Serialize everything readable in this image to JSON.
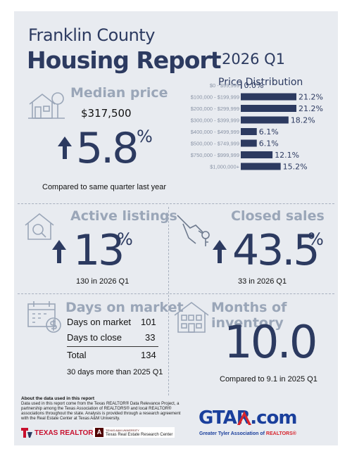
{
  "header": {
    "title_line1": "Franklin County",
    "title_line2": "Housing Report",
    "period": "2026 Q1"
  },
  "median_price": {
    "title": "Median price",
    "value": "$317,500",
    "change": "5.8",
    "unit": "%",
    "note": "Compared to same quarter last year",
    "icon": "house-tree-icon"
  },
  "price_distribution": {
    "title": "Price Distribution",
    "chart_data": {
      "type": "bar",
      "orientation": "horizontal",
      "categories": [
        "$0 - $99,999",
        "$100,000 - $199,999",
        "$200,000 - $299,999",
        "$300,000 - $399,999",
        "$400,000 - $499,999",
        "$500,000 - $749,999",
        "$750,000 - $999,999",
        "$1,000,000+"
      ],
      "values": [
        0.0,
        21.2,
        21.2,
        18.2,
        6.1,
        6.1,
        12.1,
        15.2
      ],
      "value_labels": [
        "0.0%",
        "21.2%",
        "21.2%",
        "18.2%",
        "6.1%",
        "6.1%",
        "12.1%",
        "15.2%"
      ],
      "color": "#2c3a60"
    }
  },
  "active_listings": {
    "title": "Active listings",
    "change": "13",
    "unit": "%",
    "note": "130 in 2026 Q1",
    "icon": "house-search-icon"
  },
  "closed_sales": {
    "title": "Closed sales",
    "change": "43.5",
    "unit": "%",
    "note": "33 in 2026 Q1",
    "icon": "key-hand-icon"
  },
  "days_on_market": {
    "title": "Days on market",
    "rows": [
      {
        "label": "Days on market",
        "value": "101"
      },
      {
        "label": "Days to close",
        "value": "33"
      }
    ],
    "total_label": "Total",
    "total_value": "134",
    "note": "30 days more than 2025 Q1",
    "icon": "calendar-dollar-icon"
  },
  "months_inventory": {
    "title": "Months of inventory",
    "value": "10.0",
    "note": "Compared to 9.1 in 2025 Q1",
    "icon": "house-icon"
  },
  "footer": {
    "about_title": "About the data used in this report",
    "about_text": "Data used in this report come from the Texas REALTOR® Data Relevance Project, a partnership among the Texas Association of REALTORS® and local REALTOR® associations throughout the state. Analysis is provided through a research agreement with the Real Estate Center at Texas A&M University.",
    "logo_tr": "TEXAS REALTORS",
    "logo_tamu_small": "TEXAS A&M UNIVERSITY",
    "logo_tamu": "Texas Real Estate Research Center",
    "gtar_logo": "GTAR.com",
    "gtar_sub_a": "Greater Tyler Association of ",
    "gtar_sub_b": "REALTORS®"
  },
  "colors": {
    "navy": "#2c3a60",
    "light_title": "#9aa6b8",
    "panel": "#e8ebf0",
    "gtar_blue": "#1a3f9c",
    "gtar_red": "#d8252d",
    "tr_red": "#c8102e"
  }
}
